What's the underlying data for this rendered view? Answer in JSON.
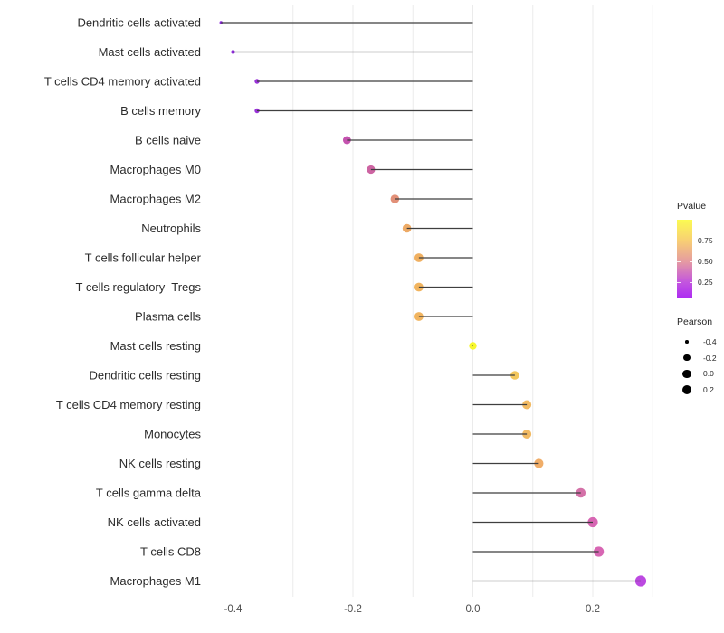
{
  "chart_data": {
    "type": "lollipop",
    "title": "",
    "xlabel": "",
    "ylabel": "",
    "x_axis": {
      "tick_labels": [
        "-0.4",
        "-0.2",
        "0.0",
        "0.2"
      ],
      "tick_values": [
        -0.4,
        -0.2,
        0.0,
        0.2
      ],
      "gridline_values": [
        -0.4,
        -0.3,
        -0.2,
        -0.1,
        0.0,
        0.1,
        0.2,
        0.3
      ],
      "range": [
        -0.455,
        0.33
      ]
    },
    "points": [
      {
        "label": "Dendritic cells activated",
        "pearson": -0.42,
        "color": "#8B27DB",
        "radius": 1.7
      },
      {
        "label": "Mast cells activated",
        "pearson": -0.4,
        "color": "#8E2BDA",
        "radius": 2.2
      },
      {
        "label": "T cells CD4 memory activated",
        "pearson": -0.36,
        "color": "#9932D8",
        "radius": 2.7
      },
      {
        "label": "B cells memory",
        "pearson": -0.36,
        "color": "#9932D8",
        "radius": 2.7
      },
      {
        "label": "B cells naive",
        "pearson": -0.21,
        "color": "#C452AF",
        "radius": 4.4
      },
      {
        "label": "Macrophages M0",
        "pearson": -0.17,
        "color": "#CD64A2",
        "radius": 4.6
      },
      {
        "label": "Macrophages M2",
        "pearson": -0.13,
        "color": "#E29078",
        "radius": 4.8
      },
      {
        "label": "Neutrophils",
        "pearson": -0.11,
        "color": "#EDAA66",
        "radius": 4.8
      },
      {
        "label": "T cells follicular helper",
        "pearson": -0.09,
        "color": "#F0B061",
        "radius": 4.9
      },
      {
        "label": "T cells regulatory  Tregs",
        "pearson": -0.09,
        "color": "#F1B45F",
        "radius": 4.9
      },
      {
        "label": "Plasma cells",
        "pearson": -0.09,
        "color": "#F1B45F",
        "radius": 4.9
      },
      {
        "label": "Mast cells resting",
        "pearson": 0.0,
        "color": "#F7F72E",
        "radius": 4.2
      },
      {
        "label": "Dendritic cells resting",
        "pearson": 0.07,
        "color": "#F3C75D",
        "radius": 4.8
      },
      {
        "label": "T cells CD4 memory resting",
        "pearson": 0.09,
        "color": "#F2BA62",
        "radius": 5.0
      },
      {
        "label": "Monocytes",
        "pearson": 0.09,
        "color": "#F2BA62",
        "radius": 5.0
      },
      {
        "label": "NK cells resting",
        "pearson": 0.11,
        "color": "#F0AD68",
        "radius": 5.1
      },
      {
        "label": "T cells gamma delta",
        "pearson": 0.18,
        "color": "#D471A8",
        "radius": 5.3
      },
      {
        "label": "NK cells activated",
        "pearson": 0.2,
        "color": "#D766B3",
        "radius": 5.6
      },
      {
        "label": "T cells CD8",
        "pearson": 0.21,
        "color": "#D766B3",
        "radius": 5.6
      },
      {
        "label": "Macrophages M1",
        "pearson": 0.28,
        "color": "#BC49E1",
        "radius": 6.1
      }
    ],
    "legend": {
      "pvalue": {
        "title": "Pvalue",
        "ticks": [
          {
            "label": "0.75",
            "pct": 27
          },
          {
            "label": "0.50",
            "pct": 54
          },
          {
            "label": "0.25",
            "pct": 80
          }
        ],
        "gradient_top_to_bottom": [
          {
            "color": "#FBFB52",
            "pct": 0
          },
          {
            "color": "#F8CF74",
            "pct": 27
          },
          {
            "color": "#E59AA2",
            "pct": 54
          },
          {
            "color": "#C356DE",
            "pct": 80
          },
          {
            "color": "#AE2DF2",
            "pct": 100
          }
        ]
      },
      "pearson": {
        "title": "Pearson",
        "entries": [
          {
            "label": "-0.4",
            "radius": 1.8
          },
          {
            "label": "-0.2",
            "radius": 3.6
          },
          {
            "label": "0.0",
            "radius": 4.6
          },
          {
            "label": "0.2",
            "radius": 5.3
          }
        ]
      }
    },
    "style": {
      "background": "#FFFFFF",
      "gridline_color": "#EBEBEB",
      "stem_color": "#3F3F3F",
      "category_text_color": "#2B2B2B",
      "axis_tick_text_color": "#4D4D4D",
      "legend_dot_color": "#000000"
    }
  }
}
